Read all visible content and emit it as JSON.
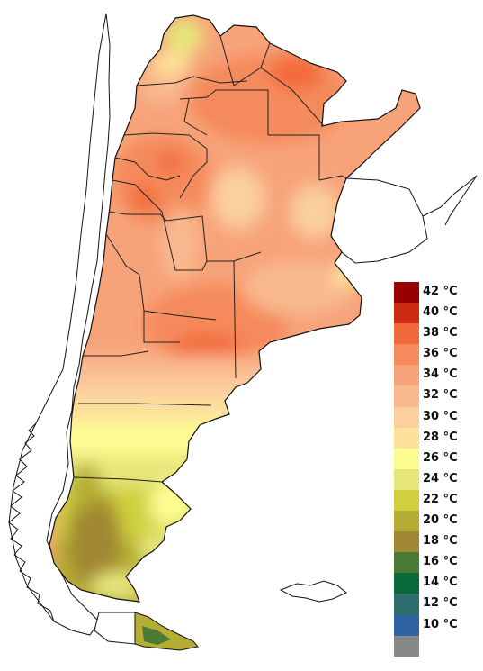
{
  "legend": {
    "items": [
      {
        "label": "42 °C",
        "color": "#990000"
      },
      {
        "label": "40 °C",
        "color": "#cc2a12"
      },
      {
        "label": "38 °C",
        "color": "#f26a3b"
      },
      {
        "label": "36 °C",
        "color": "#f58a5c"
      },
      {
        "label": "34 °C",
        "color": "#f7a37a"
      },
      {
        "label": "32 °C",
        "color": "#f9b98f"
      },
      {
        "label": "30 °C",
        "color": "#fbcf9e"
      },
      {
        "label": "28 °C",
        "color": "#fde29a"
      },
      {
        "label": "26 °C",
        "color": "#fcfc91"
      },
      {
        "label": "24 °C",
        "color": "#e6e67a"
      },
      {
        "label": "22 °C",
        "color": "#cfcf3f"
      },
      {
        "label": "20 °C",
        "color": "#b5ae32"
      },
      {
        "label": "18 °C",
        "color": "#a08733"
      },
      {
        "label": "16 °C",
        "color": "#4a7a34"
      },
      {
        "label": "14 °C",
        "color": "#0a6b3a"
      },
      {
        "label": "12 °C",
        "color": "#2f6e6e"
      },
      {
        "label": "10 °C",
        "color": "#2f63a1"
      },
      {
        "label": "",
        "color": "#888888"
      }
    ]
  },
  "colors": {
    "outline": "#111111",
    "land_neighbor": "#ffffff"
  }
}
